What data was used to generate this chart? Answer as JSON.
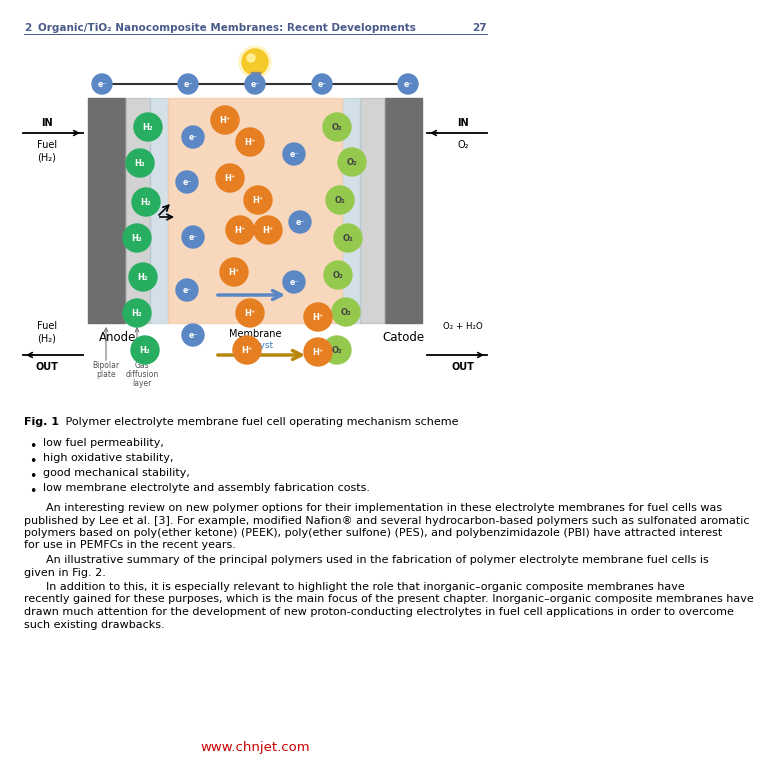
{
  "header_chapter": "2",
  "header_title": "Organic/TiO₂ Nanocomposite Membranes: Recent Developments",
  "header_page": "27",
  "bullet_points": [
    "low fuel permeability,",
    "high oxidative stability,",
    "good mechanical stability,",
    "low membrane electrolyte and assembly fabrication costs."
  ],
  "paragraph1": "An interesting review on new polymer options for their implementation in these electrolyte membranes for fuel cells was published by Lee et al. [3]. For example, modified Nafion® and several hydrocarbon-based polymers such as sulfonated aromatic polymers based on poly(ether ketone) (PEEK), poly(ether sulfone) (PES), and polybenzimidazole (PBI) have attracted interest for use in PEMFCs in the recent years.",
  "paragraph2": "An illustrative summary of the principal polymers used in the fabrication of polymer electrolyte membrane fuel cells is given in Fig. 2.",
  "paragraph3": "In addition to this, it is especially relevant to highlight the role that inorganic–organic composite membranes have recently gained for these purposes, which is the main focus of the present chapter. Inorganic–organic composite membranes have drawn much attention for the development of new proton-conducting electrolytes in fuel cell applications in order to overcome such existing drawbacks.",
  "watermark": "www.chnjet.com",
  "bg_color": "#ffffff",
  "header_color": "#4a5a8a",
  "text_color": "#000000",
  "h2_color": "#27ae60",
  "electron_color": "#5b87c5",
  "hp_color": "#e67e22",
  "o2_color": "#95c94e",
  "plate_color": "#6e6e6e",
  "membrane_color": "#f5cba7",
  "gdl_color": "#9e9e9e",
  "catalyst_color": "#b8ccd8",
  "blue_arrow_color": "#5b87c5",
  "gold_arrow_color": "#b8860b",
  "wire_color": "#333333",
  "bulb_color": "#f5c518",
  "catalyst_label_color": "#3a7abf",
  "watermark_color": "#cc0000",
  "fig2_color": "#3a7abf"
}
